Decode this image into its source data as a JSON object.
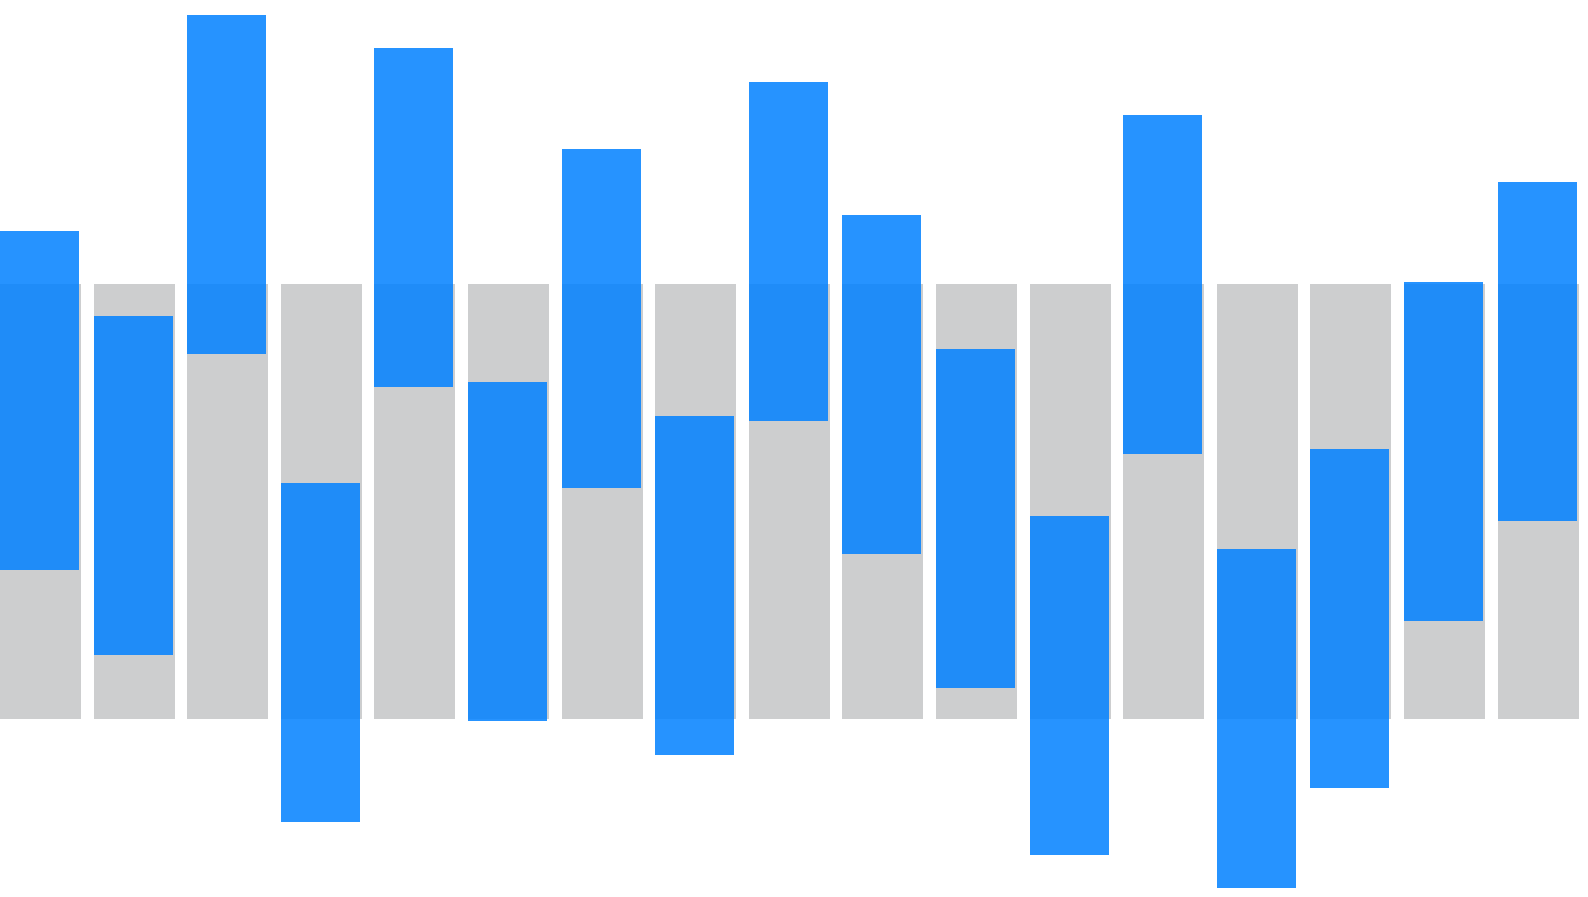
{
  "colors": {
    "background": "#ffffff",
    "track": "#cdcecf",
    "bar": "#0080ff",
    "bar_overlap": "#006bd3"
  },
  "bars": [
    {
      "offset": 0.69
    },
    {
      "offset": 0.92
    },
    {
      "offset": -0.04
    },
    {
      "offset": 1.47
    },
    {
      "offset": 0.2
    },
    {
      "offset": 1.0
    },
    {
      "offset": 0.42
    },
    {
      "offset": 1.42
    },
    {
      "offset": 0.31
    },
    {
      "offset": 0.62
    },
    {
      "offset": 1.0
    },
    {
      "offset": 1.76
    },
    {
      "offset": 0.54
    },
    {
      "offset": 1.86
    },
    {
      "offset": 1.82
    },
    {
      "offset": 1.16
    },
    {
      "offset": 0.52
    }
  ]
}
